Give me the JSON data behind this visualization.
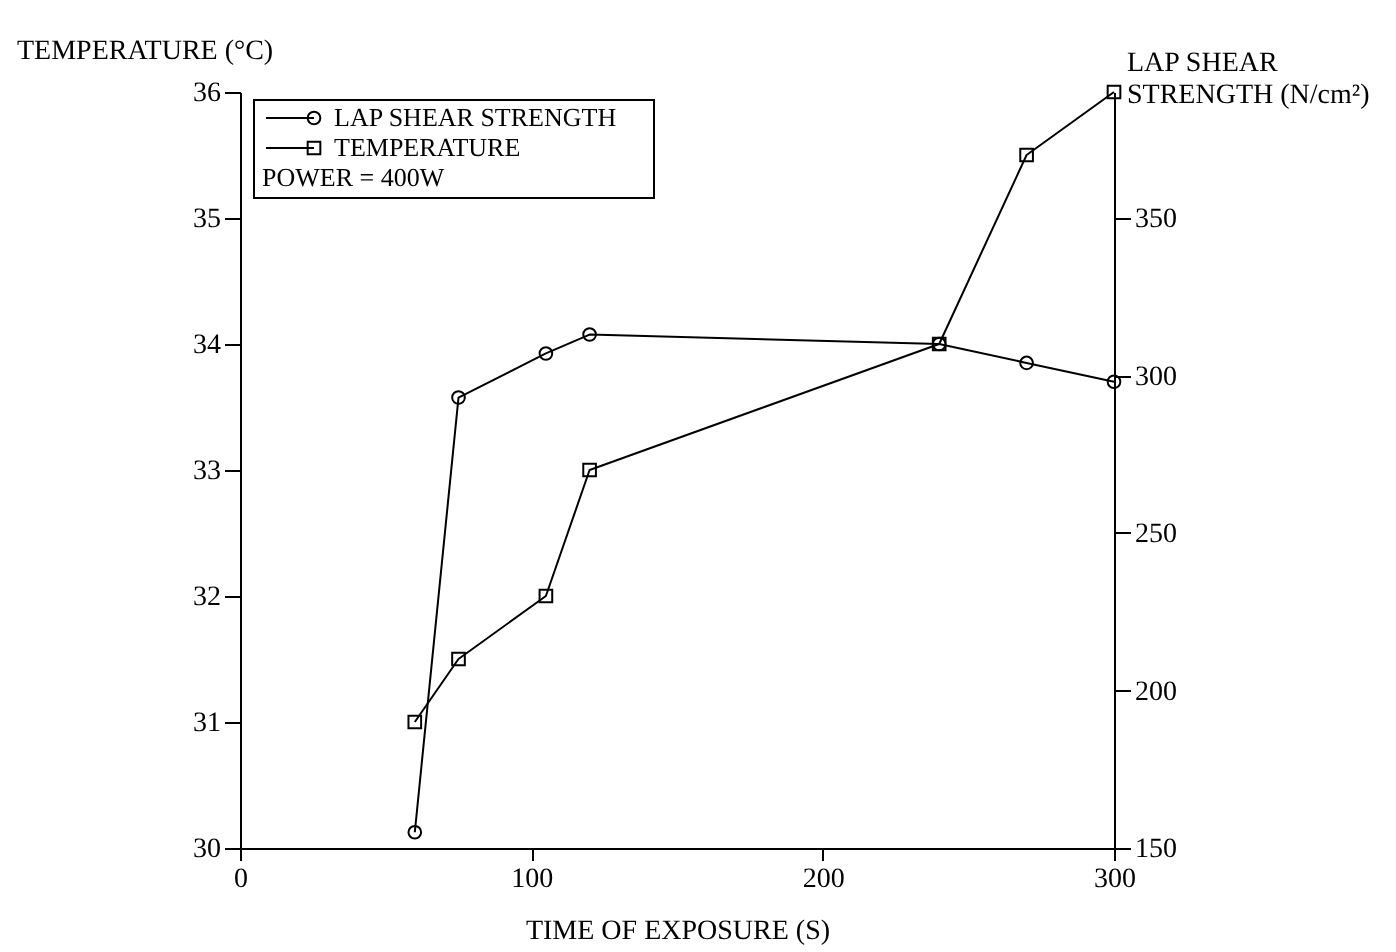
{
  "chart_data": {
    "type": "line",
    "xlabel": "TIME OF EXPOSURE (S)",
    "ylabel": "TEMPERATURE (°C)",
    "y2label": "LAP SHEAR STRENGTH (N/cm²)",
    "xlim": [
      0,
      300
    ],
    "xticks": [
      0,
      100,
      200,
      300
    ],
    "ylim": [
      30,
      36
    ],
    "yticks": [
      30,
      31,
      32,
      33,
      34,
      35,
      36
    ],
    "y2lim": [
      150,
      390
    ],
    "y2ticks": [
      150,
      200,
      250,
      300,
      350
    ],
    "legend": "top left",
    "annotations": [
      "POWER = 400W"
    ],
    "series": [
      {
        "name": "LAP SHEAR STRENGTH",
        "color": "#000000",
        "axis": "y2",
        "marker": "circle",
        "x": [
          60,
          75,
          105,
          120,
          240,
          270,
          300
        ],
        "values": [
          155,
          293,
          307,
          313,
          310,
          304,
          298
        ]
      },
      {
        "name": "TEMPERATURE",
        "color": "#000000",
        "axis": "y",
        "marker": "square",
        "x": [
          60,
          75,
          105,
          120,
          240,
          270,
          300
        ],
        "values": [
          31,
          31.5,
          32,
          33,
          34,
          35.5,
          36
        ]
      }
    ]
  }
}
